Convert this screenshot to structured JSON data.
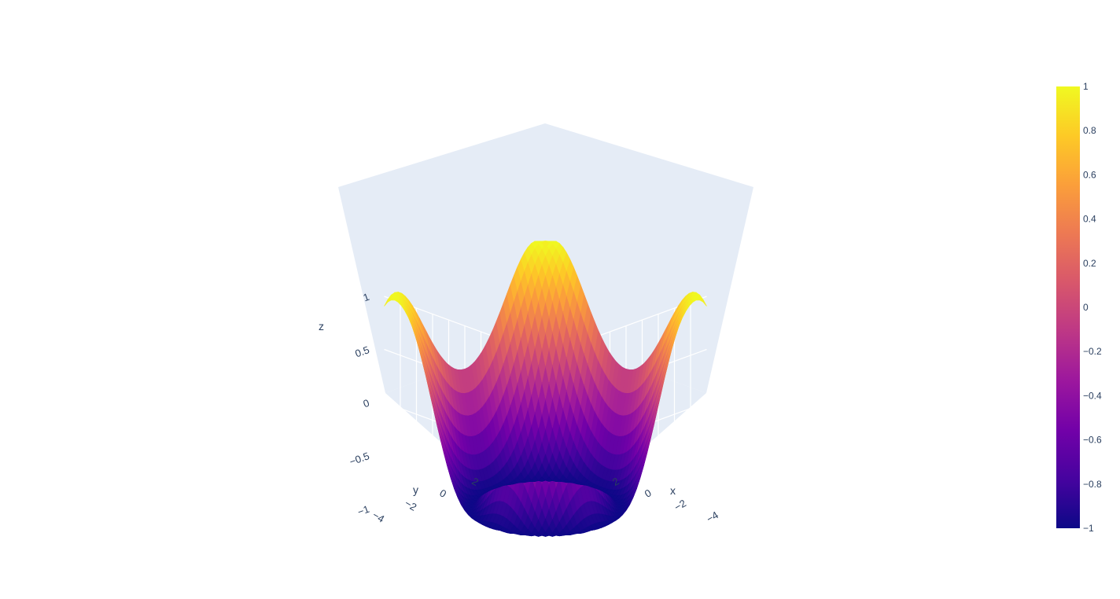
{
  "chart_data": {
    "type": "surface",
    "function": "z = cos(r)^2 - 1 ... approximated; rendered surface shows radial ripple",
    "x": {
      "label": "x",
      "ticks": [
        "−4",
        "−2",
        "0",
        "2"
      ],
      "range": [
        -5,
        5
      ]
    },
    "y": {
      "label": "y",
      "ticks": [
        "−4",
        "−2",
        "0",
        "2"
      ],
      "range": [
        -5,
        5
      ]
    },
    "z": {
      "label": "z",
      "ticks": [
        "−1",
        "−0.5",
        "0",
        "0.5",
        "1"
      ],
      "range": [
        -1,
        1
      ]
    },
    "colorbar": {
      "ticks": [
        "1",
        "0.8",
        "0.6",
        "0.4",
        "0.2",
        "0",
        "−0.2",
        "−0.4",
        "−0.6",
        "−0.8",
        "−1"
      ],
      "range": [
        -1,
        1
      ],
      "colorscale": [
        "#0d0887",
        "#46039f",
        "#7201a8",
        "#9c179e",
        "#bd3786",
        "#d8576b",
        "#ed7953",
        "#fb9f3a",
        "#fdca26",
        "#f0f921"
      ]
    },
    "scene_background": "#e5ecf6",
    "grid_color": "#ffffff"
  }
}
